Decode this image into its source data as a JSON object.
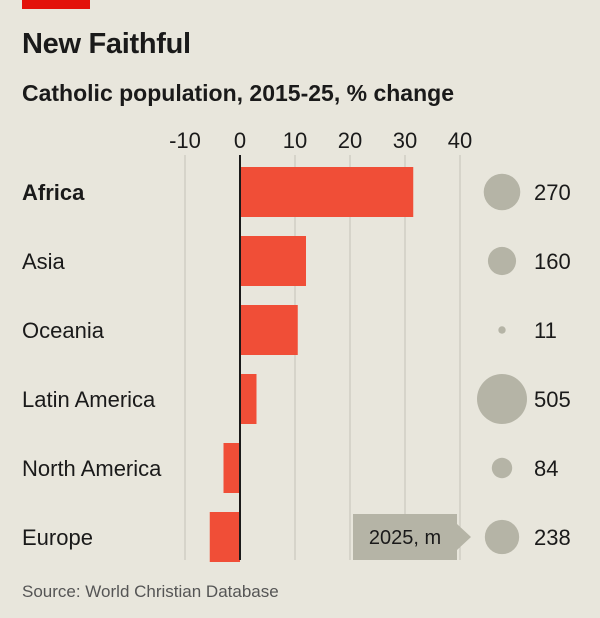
{
  "header": {
    "title": "New Faithful",
    "subtitle": "Catholic population, 2015-25, % change"
  },
  "footer": {
    "source": "Source: World Christian Database"
  },
  "chart_data": {
    "type": "bar",
    "orientation": "horizontal",
    "title": "New Faithful",
    "subtitle": "Catholic population, 2015-25, % change",
    "categories": [
      "Africa",
      "Asia",
      "Oceania",
      "Latin America",
      "North America",
      "Europe"
    ],
    "highlight_category": "Africa",
    "values": [
      31.5,
      12,
      10.5,
      3,
      -3,
      -5.5
    ],
    "xlim": [
      -10,
      40
    ],
    "xticks": [
      -10,
      0,
      10,
      20,
      30,
      40
    ],
    "grid": true,
    "bar_color": "#f04e37",
    "population_2025": {
      "label": "2025, m",
      "values": [
        270,
        160,
        11,
        505,
        84,
        238
      ],
      "circle_color": "#b5b4a6"
    }
  },
  "colors": {
    "background": "#e8e6dc",
    "accent": "#e3120b",
    "bar": "#f04e37",
    "circle": "#b5b4a6",
    "grid": "#c4c2b8"
  }
}
